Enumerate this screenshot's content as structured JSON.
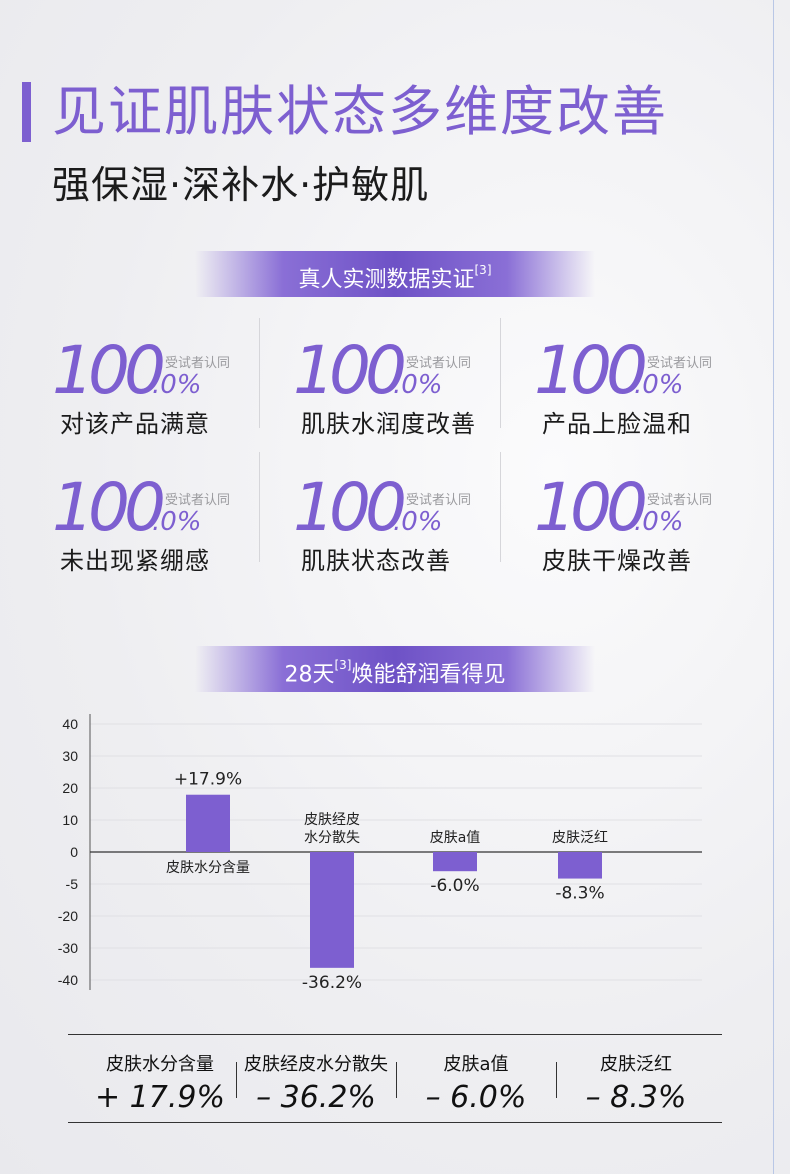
{
  "title": "见证肌肤状态多维度改善",
  "subtitle": "强保湿·深补水·护敏肌",
  "banner1": {
    "text": "真人实测数据实证",
    "ref": "[3]"
  },
  "stats": [
    {
      "big": "100",
      "dec": ".0%",
      "small": "受试者认同",
      "label": "对该产品满意"
    },
    {
      "big": "100",
      "dec": ".0%",
      "small": "受试者认同",
      "label": "肌肤水润度改善"
    },
    {
      "big": "100",
      "dec": ".0%",
      "small": "受试者认同",
      "label": "产品上脸温和"
    },
    {
      "big": "100",
      "dec": ".0%",
      "small": "受试者认同",
      "label": "未出现紧绷感"
    },
    {
      "big": "100",
      "dec": ".0%",
      "small": "受试者认同",
      "label": "肌肤状态改善"
    },
    {
      "big": "100",
      "dec": ".0%",
      "small": "受试者认同",
      "label": "皮肤干燥改善"
    }
  ],
  "banner2": {
    "pre": "28天",
    "ref": "[3]",
    "post": "焕能舒润看得见"
  },
  "chart_data": {
    "type": "bar",
    "categories": [
      "皮肤水分含量",
      "皮肤经皮水分散失",
      "皮肤a值",
      "皮肤泛红"
    ],
    "category_labels": [
      [
        "皮肤水分含量"
      ],
      [
        "皮肤经皮",
        "水分散失"
      ],
      [
        "皮肤a值"
      ],
      [
        "皮肤泛红"
      ]
    ],
    "values": [
      17.9,
      -36.2,
      -6.0,
      -8.3
    ],
    "data_labels": [
      "+17.9%",
      "-36.2%",
      "-6.0%",
      "-8.3%"
    ],
    "y_ticks": [
      "40",
      "30",
      "20",
      "10",
      "0",
      "-5",
      "-20",
      "-30",
      "-40"
    ],
    "y_tick_values": [
      40,
      30,
      20,
      10,
      0,
      -5,
      -20,
      -30,
      -40
    ],
    "ylim": [
      -40,
      40
    ],
    "bar_color": "#7d5fd0",
    "grid": true
  },
  "summary": [
    {
      "label": "皮肤水分含量",
      "value": "+ 17.9%"
    },
    {
      "label": "皮肤经皮水分散失",
      "value": "– 36.2%"
    },
    {
      "label": "皮肤a值",
      "value": "– 6.0%"
    },
    {
      "label": "皮肤泛红",
      "value": "– 8.3%"
    }
  ],
  "colors": {
    "accent": "#7d5fd0",
    "banner": "#6e52c6"
  }
}
